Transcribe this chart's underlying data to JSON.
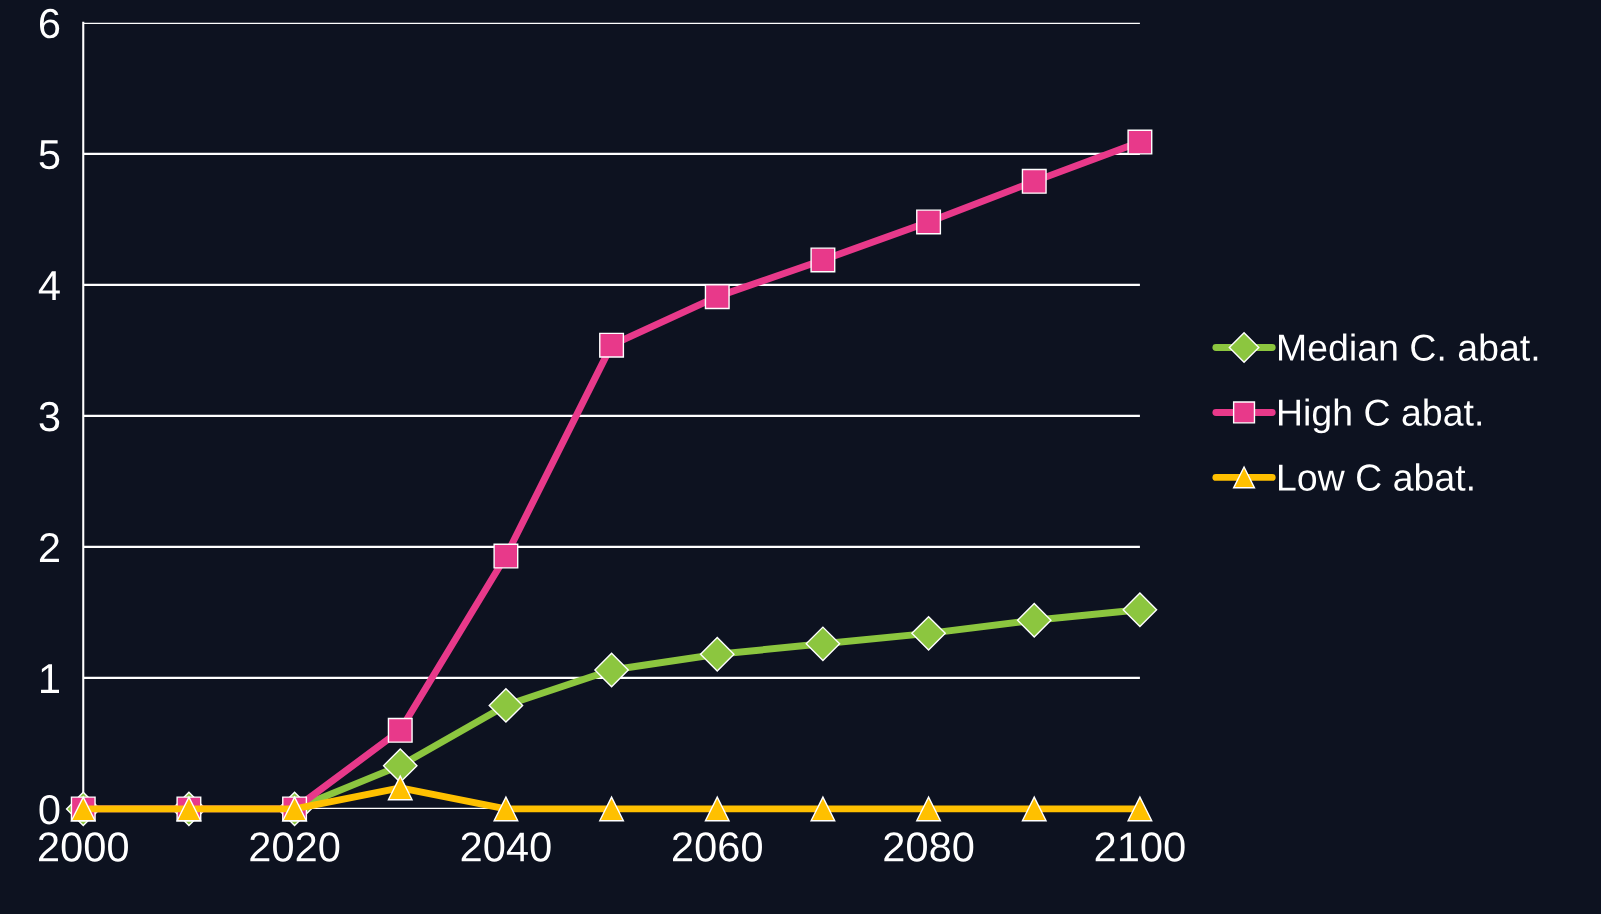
{
  "chart_data": {
    "type": "line",
    "x": [
      2000,
      2010,
      2020,
      2030,
      2040,
      2050,
      2060,
      2070,
      2080,
      2090,
      2100
    ],
    "series": [
      {
        "name": "Median C. abat.",
        "color": "#8cc63f",
        "marker": "diamond",
        "values": [
          0,
          0,
          0,
          0.33,
          0.79,
          1.06,
          1.18,
          1.26,
          1.34,
          1.44,
          1.52
        ]
      },
      {
        "name": "High C abat.",
        "color": "#e8398a",
        "marker": "square",
        "values": [
          0,
          0,
          0,
          0.6,
          1.93,
          3.54,
          3.91,
          4.19,
          4.48,
          4.79,
          5.09
        ]
      },
      {
        "name": "Low C abat.",
        "color": "#ffc000",
        "marker": "triangle",
        "values": [
          0,
          0,
          0,
          0.16,
          0,
          0,
          0,
          0,
          0,
          0,
          0
        ]
      }
    ],
    "xlim": [
      2000,
      2100
    ],
    "xticks": [
      2000,
      2020,
      2040,
      2060,
      2080,
      2100
    ],
    "ylim": [
      0,
      6
    ],
    "yticks": [
      0,
      1,
      2,
      3,
      4,
      5,
      6
    ],
    "grid": "y",
    "legend": "right",
    "line_style": "solid"
  }
}
